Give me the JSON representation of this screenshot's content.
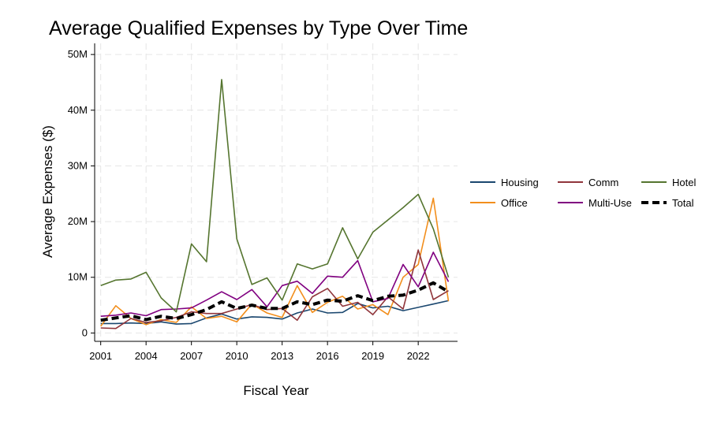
{
  "chart_data": {
    "type": "line",
    "title": "Average Qualified Expenses by Type Over Time",
    "xlabel": "Fiscal Year",
    "ylabel": "Average Expenses ($)",
    "xlim": [
      2000.6,
      2024.6
    ],
    "ylim": [
      -1500000,
      52000000
    ],
    "xticks": [
      2001,
      2004,
      2007,
      2010,
      2013,
      2016,
      2019,
      2022
    ],
    "xtick_labels": [
      "2001",
      "2004",
      "2007",
      "2010",
      "2013",
      "2016",
      "2019",
      "2022"
    ],
    "yticks": [
      0,
      10000000,
      20000000,
      30000000,
      40000000,
      50000000
    ],
    "ytick_labels": [
      "0",
      "10M",
      "20M",
      "30M",
      "40M",
      "50M"
    ],
    "grid": true,
    "legend_placement": "right",
    "x": [
      2001,
      2002,
      2003,
      2004,
      2005,
      2006,
      2007,
      2008,
      2009,
      2010,
      2011,
      2012,
      2013,
      2014,
      2015,
      2016,
      2017,
      2018,
      2019,
      2020,
      2021,
      2022,
      2023,
      2024
    ],
    "series": [
      {
        "name": "Housing",
        "color": "#1a476f",
        "dash": "solid",
        "values": [
          1700000,
          1700000,
          1800000,
          1700000,
          2000000,
          1600000,
          1700000,
          2700000,
          3400000,
          2500000,
          2900000,
          2800000,
          2500000,
          3600000,
          4300000,
          3600000,
          3700000,
          5300000,
          4500000,
          4800000,
          4000000,
          4600000,
          5200000,
          5800000
        ]
      },
      {
        "name": "Office",
        "color": "#f28e1c",
        "dash": "solid",
        "values": [
          1200000,
          4900000,
          2600000,
          1500000,
          2400000,
          1900000,
          4700000,
          2600000,
          3000000,
          2000000,
          5200000,
          3600000,
          2800000,
          8500000,
          3700000,
          5500000,
          6600000,
          4300000,
          5100000,
          3300000,
          10000000,
          12300000,
          24200000,
          5700000
        ]
      },
      {
        "name": "Comm",
        "color": "#90353b",
        "dash": "solid",
        "values": [
          900000,
          800000,
          2600000,
          1900000,
          2200000,
          2800000,
          3800000,
          3500000,
          3500000,
          4300000,
          5100000,
          4200000,
          4400000,
          2300000,
          6500000,
          8000000,
          4800000,
          5500000,
          3300000,
          6500000,
          4300000,
          14900000,
          6000000,
          7600000
        ]
      },
      {
        "name": "Multi-Use",
        "color": "#800080",
        "dash": "solid",
        "values": [
          3000000,
          3200000,
          3600000,
          3100000,
          4200000,
          4300000,
          4500000,
          5900000,
          7400000,
          6000000,
          7800000,
          4700000,
          8500000,
          9300000,
          7100000,
          10200000,
          10000000,
          13000000,
          5600000,
          6200000,
          12300000,
          8300000,
          14500000,
          9200000
        ]
      },
      {
        "name": "Hotel",
        "color": "#55752f",
        "dash": "solid",
        "values": [
          8500000,
          9500000,
          9700000,
          10900000,
          6300000,
          3800000,
          16000000,
          12800000,
          45500000,
          16900000,
          8700000,
          9900000,
          5900000,
          12400000,
          11500000,
          12400000,
          18900000,
          13300000,
          18100000,
          20300000,
          22500000,
          24900000,
          18700000,
          10000000
        ]
      },
      {
        "name": "Total",
        "color": "#000000",
        "dash": "dashed",
        "values": [
          2300000,
          2700000,
          3100000,
          2400000,
          3000000,
          2600000,
          3300000,
          4200000,
          5600000,
          4400000,
          5000000,
          4400000,
          4400000,
          5600000,
          5100000,
          5900000,
          5700000,
          6700000,
          5800000,
          6600000,
          6800000,
          7700000,
          9000000,
          7400000
        ]
      }
    ],
    "legend_order": [
      "Housing",
      "Comm",
      "Hotel",
      "Office",
      "Multi-Use",
      "Total"
    ]
  }
}
